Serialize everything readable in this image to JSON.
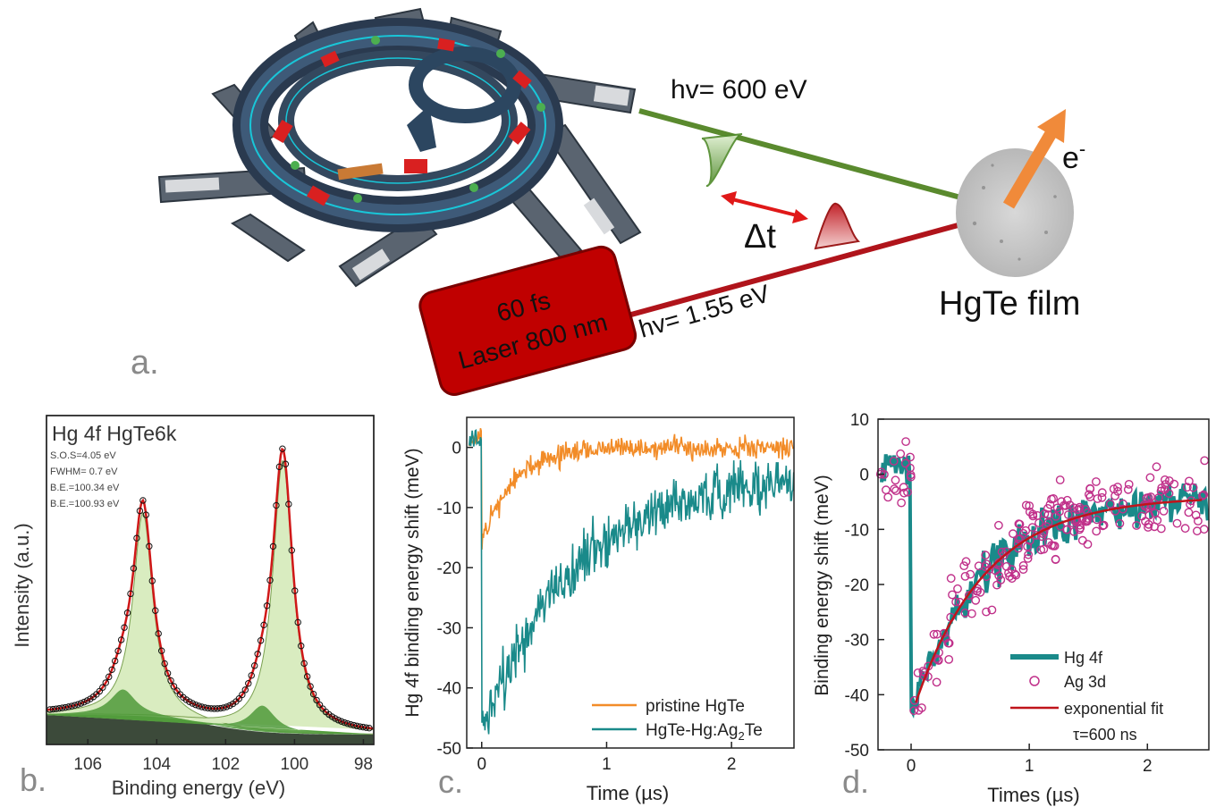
{
  "schematic": {
    "hv_xray": "hv= 600 eV",
    "hv_laser": "hv= 1.55 eV",
    "delta_t": "Δt",
    "electron": "e",
    "electron_sup": "-",
    "sample": "HgTe film",
    "laser_line1": "60 fs",
    "laser_line2": "Laser  800 nm",
    "panel_label": "a.",
    "colors": {
      "xray": "#5a8a2e",
      "laser": "#b0141b",
      "electron_arrow": "#f08a3a",
      "laser_box": "#c00000"
    }
  },
  "chart_data": [
    {
      "type": "line",
      "panel_label": "b.",
      "title": "Hg 4f  HgTe6k",
      "annotations": [
        "S.O.S=4.05 eV",
        "FWHM= 0.7 eV",
        "B.E.=100.34 eV",
        "B.E.=100.93 eV"
      ],
      "xlabel": "Binding energy (eV)",
      "ylabel": "Intensity (a.u.)",
      "xlim": [
        107.2,
        97.7
      ],
      "x_reversed": true,
      "xticks": [
        106,
        104,
        102,
        100,
        98
      ],
      "ylim": [
        0,
        1.0
      ],
      "peaks_main": [
        {
          "center": 104.4,
          "height": 0.62
        },
        {
          "center": 100.34,
          "height": 0.83
        }
      ],
      "peaks_minor": [
        {
          "center": 104.98,
          "height": 0.08
        },
        {
          "center": 100.93,
          "height": 0.08
        }
      ],
      "background": {
        "left": 0.09,
        "right": 0.03
      },
      "grid": false
    },
    {
      "type": "line",
      "panel_label": "c.",
      "xlabel": "Time (µs)",
      "ylabel": "Hg 4f binding energy shift (meV)",
      "xlim": [
        -0.12,
        2.5
      ],
      "ylim": [
        -50,
        5
      ],
      "xticks": [
        0,
        1,
        2
      ],
      "yticks": [
        0,
        -10,
        -20,
        -30,
        -40,
        -50
      ],
      "legend_position": "bottom-right",
      "series": [
        {
          "name": "pristine HgTe",
          "color": "#f28c28",
          "jump_at": 0.0,
          "min": -16,
          "tau": 0.25,
          "noise": 2.0
        },
        {
          "name": "HgTe-Hg:Ag2Te",
          "name_base": "HgTe-Hg:Ag",
          "name_sub": "2",
          "name_end": "Te",
          "color": "#1a8a8a",
          "jump_at": 0.0,
          "min": -48,
          "tau": 0.7,
          "offset_end": -5,
          "noise": 3.0
        }
      ],
      "grid": false
    },
    {
      "type": "scatter",
      "panel_label": "d.",
      "xlabel": "Times (µs)",
      "ylabel": "Binding energy shift (meV)",
      "xlim": [
        -0.28,
        2.52
      ],
      "ylim": [
        -50,
        10
      ],
      "xticks": [
        0,
        1,
        2
      ],
      "yticks": [
        10,
        0,
        -10,
        -20,
        -30,
        -40,
        -50
      ],
      "legend_position": "bottom-right",
      "series": [
        {
          "name": "Hg 4f",
          "color": "#1a8a8a",
          "kind": "line"
        },
        {
          "name": "Ag 3d",
          "color": "#c0308a",
          "kind": "markers"
        },
        {
          "name": "exponential fit",
          "color": "#c0141b",
          "kind": "line",
          "amplitude": -40,
          "tau_us": 0.6,
          "offset": -4
        }
      ],
      "fit_label": "τ=600 ns",
      "grid": false
    }
  ]
}
